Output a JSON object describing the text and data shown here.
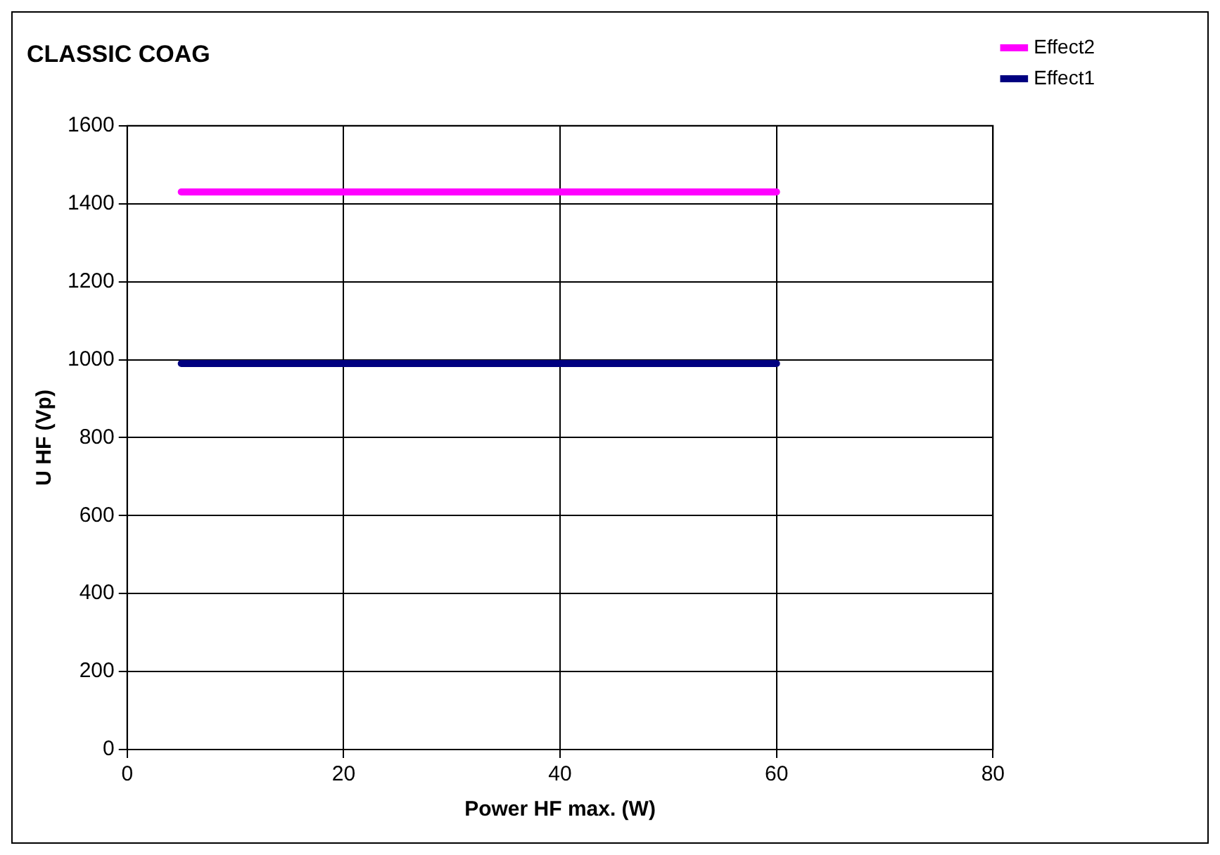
{
  "chart_data": {
    "type": "line",
    "title": "CLASSIC COAG",
    "xlabel": "Power HF max. (W)",
    "ylabel": "U HF (Vp)",
    "x": [
      5,
      60
    ],
    "series": [
      {
        "name": "Effect2",
        "color": "#ff00ff",
        "values": [
          1430,
          1430
        ]
      },
      {
        "name": "Effect1",
        "color": "#000080",
        "values": [
          990,
          990
        ]
      }
    ],
    "xlim": [
      0,
      80
    ],
    "xticks": [
      0,
      20,
      40,
      60,
      80
    ],
    "ylim": [
      0,
      1600
    ],
    "yticks": [
      0,
      200,
      400,
      600,
      800,
      1000,
      1200,
      1400,
      1600
    ],
    "grid": true,
    "legend": "right",
    "marker": "none",
    "line_style": "solid"
  }
}
